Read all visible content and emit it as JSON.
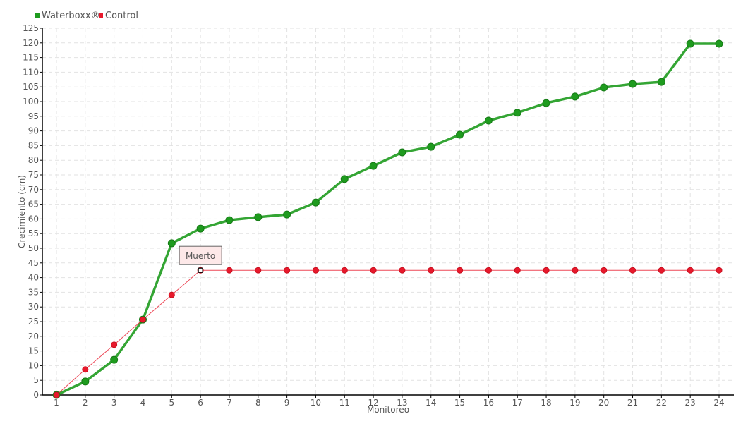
{
  "chart_data": {
    "type": "line",
    "xlabel": "Monitoreo",
    "ylabel": "Crecimiento (cm)",
    "x": [
      1,
      2,
      3,
      4,
      5,
      6,
      7,
      8,
      9,
      10,
      11,
      12,
      13,
      14,
      15,
      16,
      17,
      18,
      19,
      20,
      21,
      22,
      23,
      24
    ],
    "ylim": [
      0,
      125
    ],
    "ytick_step": 5,
    "grid": true,
    "legend_position": "top-left",
    "series": [
      {
        "name": "Waterboxx®",
        "color": "#1e9b1e",
        "values": [
          0,
          4.6,
          12,
          25.7,
          51.7,
          56.7,
          59.6,
          60.6,
          61.5,
          65.6,
          73.6,
          78.1,
          82.7,
          84.6,
          88.7,
          93.5,
          96.2,
          99.5,
          101.7,
          104.8,
          106,
          106.7,
          119.7,
          119.7
        ]
      },
      {
        "name": "Control",
        "color": "#e8192c",
        "values": [
          0,
          8.7,
          17.1,
          25.7,
          34.1,
          42.5,
          42.5,
          42.5,
          42.5,
          42.5,
          42.5,
          42.5,
          42.5,
          42.5,
          42.5,
          42.5,
          42.5,
          42.5,
          42.5,
          42.5,
          42.5,
          42.5,
          42.5,
          42.5
        ]
      }
    ],
    "annotations": [
      {
        "series": "Control",
        "x": 6,
        "text": "Muerto"
      }
    ]
  }
}
